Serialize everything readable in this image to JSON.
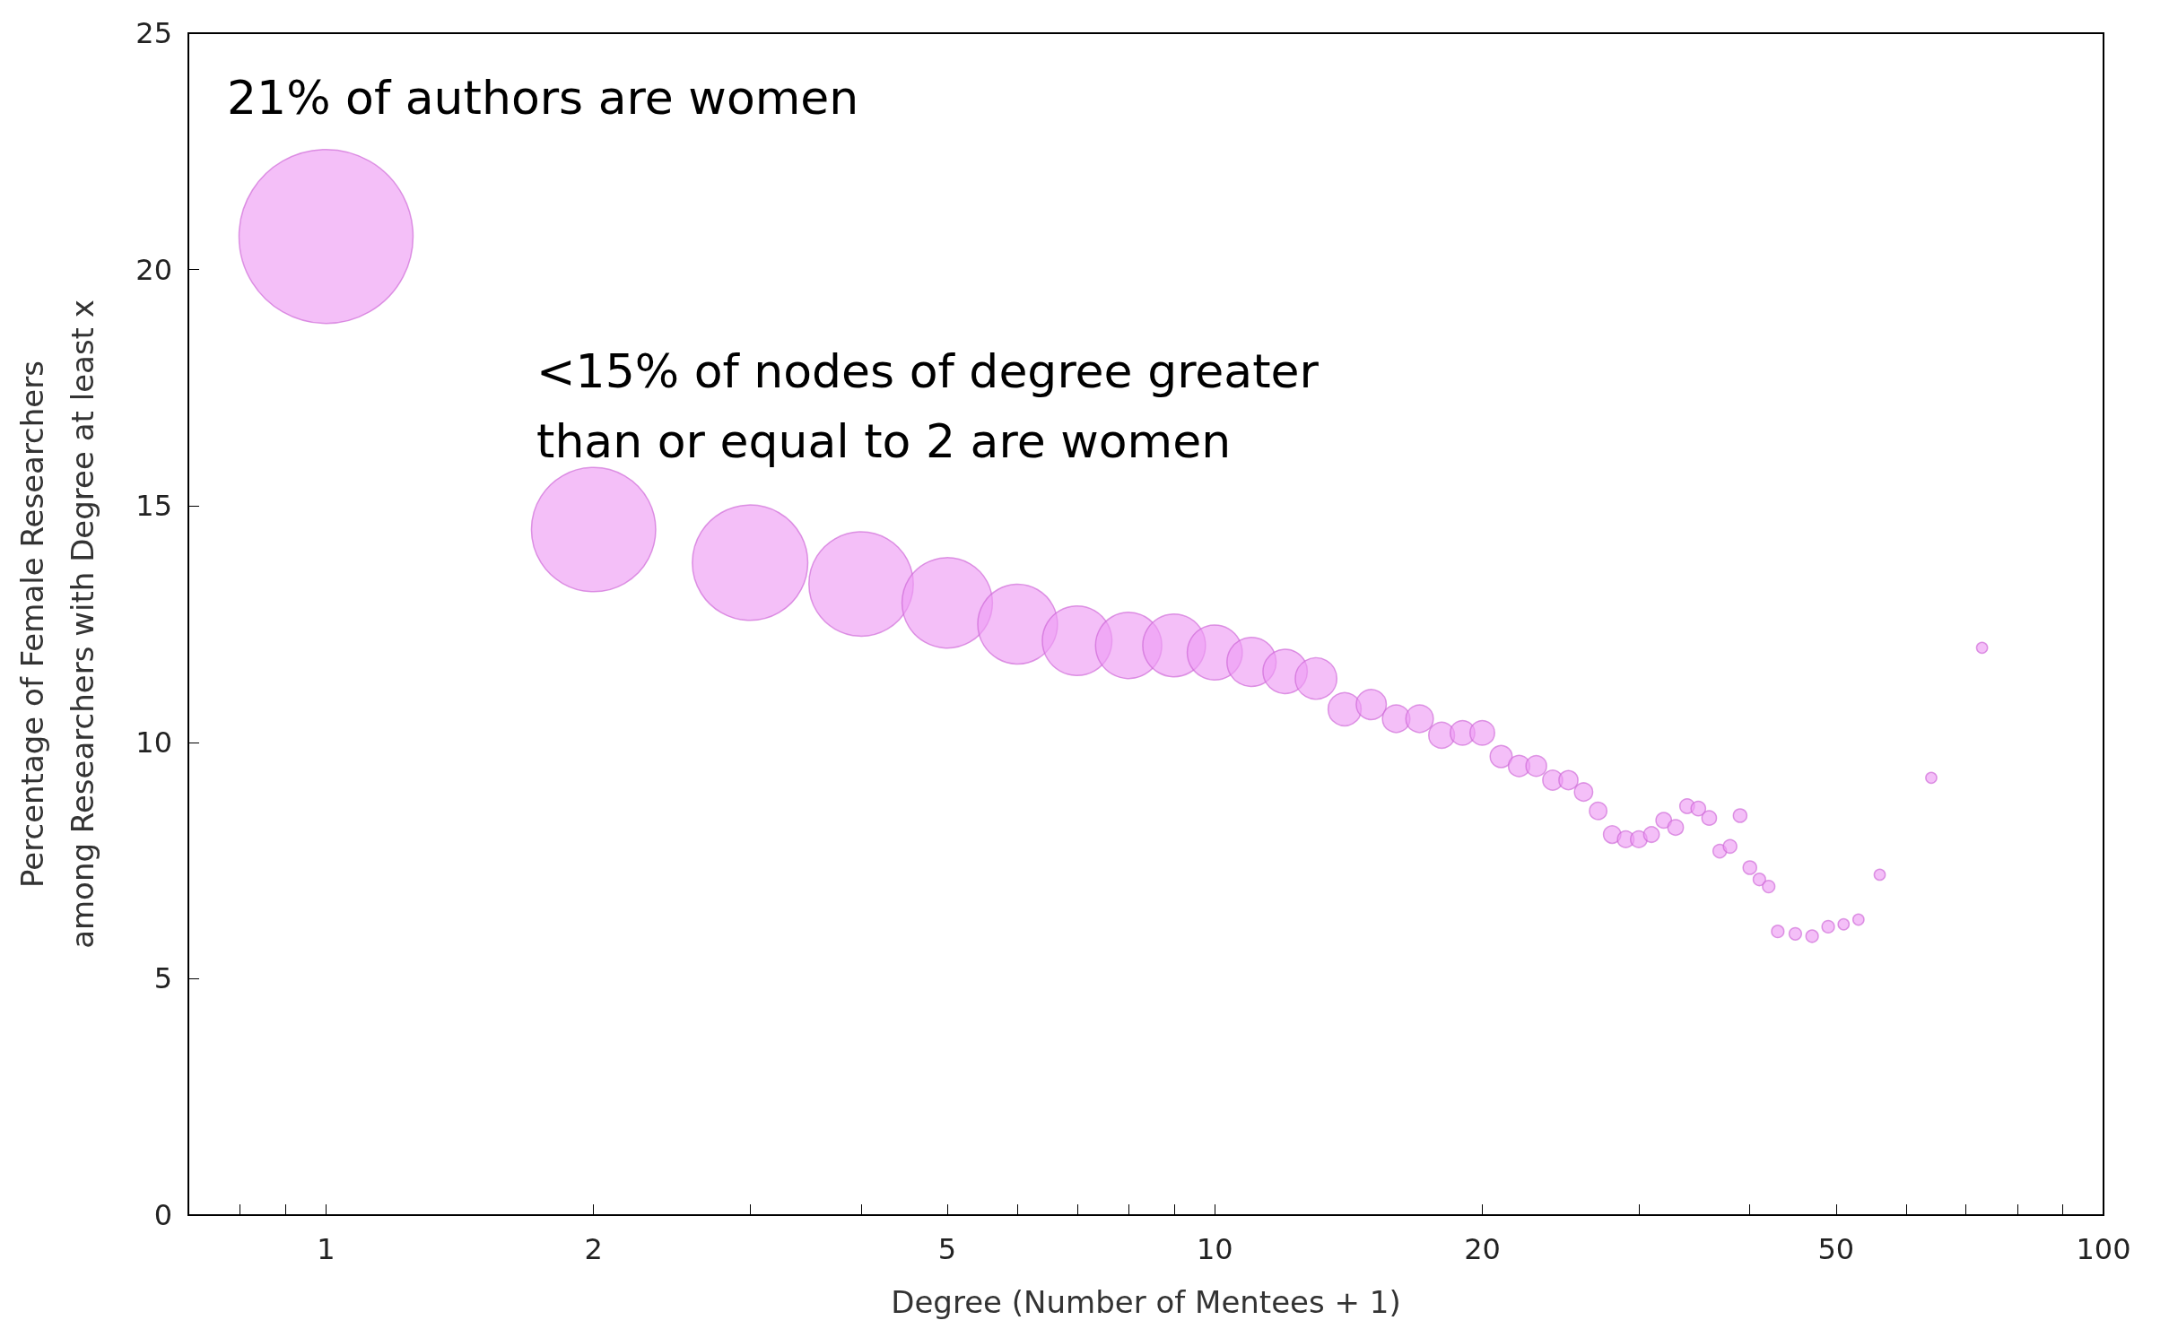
{
  "chart_data": {
    "type": "bubble",
    "xlabel": "Degree (Number of Mentees + 1)",
    "ylabel": "Percentage of Female Researchers\namong Researchers with Degree at least x",
    "annotations": [
      "21% of authors are women",
      "<15% of nodes of degree greater\nthan or equal to 2 are women"
    ],
    "log": "x",
    "grid": false,
    "marker": "circle",
    "xlim": [
      0.7,
      100
    ],
    "xticks": [
      {
        "value": 0.8,
        "label": null
      },
      {
        "value": 0.9,
        "label": null
      },
      1,
      2,
      {
        "value": 3,
        "label": null
      },
      {
        "value": 4,
        "label": null
      },
      5,
      {
        "value": 6,
        "label": null
      },
      {
        "value": 7,
        "label": null
      },
      {
        "value": 8,
        "label": null
      },
      {
        "value": 9,
        "label": null
      },
      10,
      20,
      {
        "value": 30,
        "label": null
      },
      {
        "value": 40,
        "label": null
      },
      50,
      {
        "value": 60,
        "label": null
      },
      {
        "value": 70,
        "label": null
      },
      {
        "value": 80,
        "label": null
      },
      {
        "value": 90,
        "label": null
      },
      100
    ],
    "ylim": [
      0,
      25
    ],
    "yticks": [
      0,
      5,
      10,
      15,
      20,
      25
    ],
    "series": [
      {
        "color": "#ee9cf4",
        "x": [
          1,
          2,
          3,
          4,
          5,
          6,
          7,
          8,
          9,
          10,
          11,
          12,
          13,
          14,
          15,
          16,
          17,
          18,
          19,
          20,
          21,
          22,
          23,
          24,
          25,
          26,
          27,
          28,
          29,
          30,
          31,
          32,
          33,
          34,
          35,
          36,
          37,
          38,
          39,
          40,
          41,
          42,
          43,
          45,
          47,
          49,
          51,
          53,
          56,
          64,
          73
        ],
        "values": [
          20.7,
          14.5,
          13.8,
          13.35,
          12.95,
          12.5,
          12.15,
          12.05,
          12.05,
          11.9,
          11.7,
          11.5,
          11.35,
          10.7,
          10.8,
          10.5,
          10.5,
          10.15,
          10.2,
          10.2,
          9.7,
          9.5,
          9.5,
          9.2,
          9.2,
          8.95,
          8.55,
          8.05,
          7.95,
          7.95,
          8.05,
          8.35,
          8.2,
          8.65,
          8.6,
          8.4,
          7.7,
          7.8,
          8.45,
          7.35,
          7.1,
          6.95,
          6.0,
          5.95,
          5.9,
          6.1,
          6.15,
          6.25,
          7.2,
          9.25,
          12.0
        ],
        "sizes": [
          1,
          0.51,
          0.44,
          0.36,
          0.27,
          0.21,
          0.16,
          0.145,
          0.13,
          0.1,
          0.08,
          0.065,
          0.057,
          0.036,
          0.03,
          0.025,
          0.025,
          0.022,
          0.02,
          0.02,
          0.016,
          0.015,
          0.014,
          0.013,
          0.012,
          0.011,
          0.01,
          0.01,
          0.009,
          0.009,
          0.008,
          0.008,
          0.008,
          0.007,
          0.007,
          0.007,
          0.006,
          0.006,
          0.006,
          0.006,
          0.005,
          0.005,
          0.005,
          0.005,
          0.005,
          0.005,
          0.004,
          0.004,
          0.004,
          0.004,
          0.004
        ]
      }
    ]
  }
}
